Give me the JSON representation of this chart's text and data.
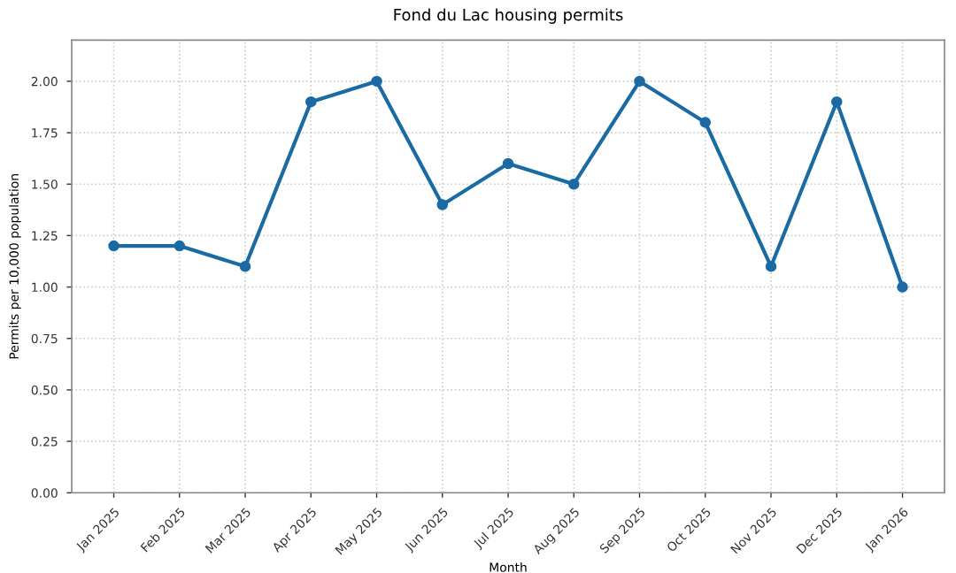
{
  "chart_data": {
    "type": "line",
    "title": "Fond du Lac housing permits",
    "xlabel": "Month",
    "ylabel": "Permits per 10,000 population",
    "categories": [
      "Jan 2025",
      "Feb 2025",
      "Mar 2025",
      "Apr 2025",
      "May 2025",
      "Jun 2025",
      "Jul 2025",
      "Aug 2025",
      "Sep 2025",
      "Oct 2025",
      "Nov 2025",
      "Dec 2025",
      "Jan 2026"
    ],
    "series": [
      {
        "color": "#1a6aa3",
        "values": [
          1.2,
          1.2,
          1.1,
          1.9,
          2.0,
          1.4,
          1.6,
          1.5,
          2.0,
          1.8,
          1.1,
          1.9,
          1.0
        ]
      }
    ],
    "ylim": [
      0,
      2.2
    ],
    "yticks": [
      {
        "value": 0,
        "label": "0.00"
      },
      {
        "value": 0.25,
        "label": "0.25"
      },
      {
        "value": 0.5,
        "label": "0.50"
      },
      {
        "value": 0.75,
        "label": "0.75"
      },
      {
        "value": 1.0,
        "label": "1.00"
      },
      {
        "value": 1.25,
        "label": "1.25"
      },
      {
        "value": 1.5,
        "label": "1.50"
      },
      {
        "value": 1.75,
        "label": "1.75"
      },
      {
        "value": 2.0,
        "label": "2.00"
      }
    ],
    "grid": true,
    "marker": "circle",
    "line_style": "solid"
  }
}
